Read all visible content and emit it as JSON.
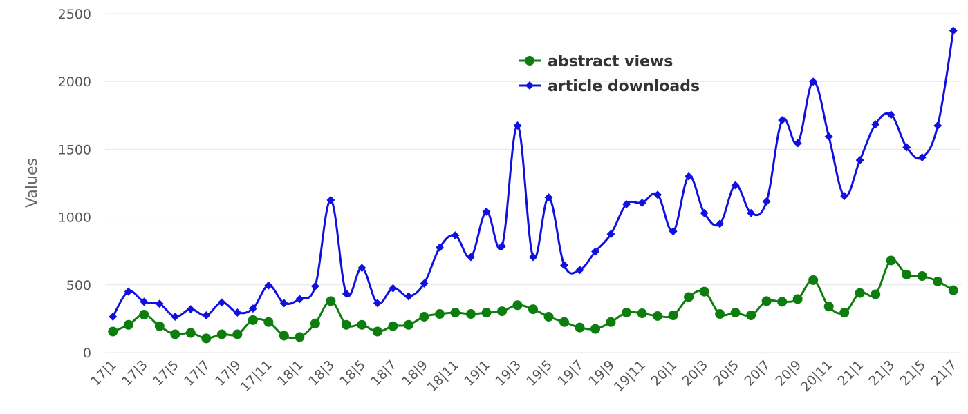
{
  "chart_data": {
    "type": "line",
    "title": "",
    "xlabel": "",
    "ylabel": "Values",
    "ylim": [
      0,
      2500
    ],
    "yticks": [
      0,
      500,
      1000,
      1500,
      2000,
      2500
    ],
    "grid": true,
    "legend_position": "top-center",
    "categories": [
      "17|1",
      "17|2",
      "17|3",
      "17|4",
      "17|5",
      "17|6",
      "17|7",
      "17|8",
      "17|9",
      "17|10",
      "17|11",
      "17|12",
      "18|1",
      "18|2",
      "18|3",
      "18|4",
      "18|5",
      "18|6",
      "18|7",
      "18|8",
      "18|9",
      "18|10",
      "18|11",
      "18|12",
      "19|1",
      "19|2",
      "19|3",
      "19|4",
      "19|5",
      "19|6",
      "19|7",
      "19|8",
      "19|9",
      "19|10",
      "19|11",
      "19|12",
      "20|1",
      "20|2",
      "20|3",
      "20|4",
      "20|5",
      "20|6",
      "20|7",
      "20|8",
      "20|9",
      "20|10",
      "20|11",
      "20|12",
      "21|1",
      "21|2",
      "21|3",
      "21|4",
      "21|5",
      "21|6",
      "21|7"
    ],
    "x_tick_labels": [
      "17|1",
      "17|3",
      "17|5",
      "17|7",
      "17|9",
      "17|11",
      "18|1",
      "18|3",
      "18|5",
      "18|7",
      "18|9",
      "18|11",
      "19|1",
      "19|3",
      "19|5",
      "19|7",
      "19|9",
      "19|11",
      "20|1",
      "20|3",
      "20|5",
      "20|7",
      "20|9",
      "20|11",
      "21|1",
      "21|3",
      "21|5",
      "21|7"
    ],
    "series": [
      {
        "name": "abstract views",
        "color": "#0d7e0d",
        "marker": "circle",
        "values": [
          155,
          205,
          280,
          195,
          135,
          145,
          105,
          135,
          135,
          240,
          225,
          125,
          115,
          215,
          380,
          205,
          205,
          155,
          195,
          205,
          265,
          285,
          295,
          285,
          295,
          305,
          350,
          320,
          265,
          225,
          185,
          175,
          225,
          295,
          290,
          270,
          275,
          410,
          450,
          285,
          295,
          275,
          380,
          375,
          395,
          535,
          340,
          295,
          440,
          430,
          680,
          575,
          565,
          525,
          460
        ]
      },
      {
        "name": "article downloads",
        "color": "#1010e0",
        "marker": "diamond",
        "values": [
          265,
          450,
          375,
          360,
          265,
          320,
          275,
          370,
          295,
          325,
          495,
          365,
          395,
          490,
          1125,
          435,
          625,
          365,
          475,
          415,
          510,
          775,
          865,
          705,
          1040,
          785,
          1675,
          705,
          1145,
          645,
          610,
          745,
          875,
          1095,
          1105,
          1165,
          895,
          1300,
          1030,
          950,
          1235,
          1030,
          1115,
          1715,
          1545,
          2000,
          1595,
          1155,
          1420,
          1685,
          1755,
          1515,
          1440,
          1675,
          2375
        ]
      }
    ]
  }
}
